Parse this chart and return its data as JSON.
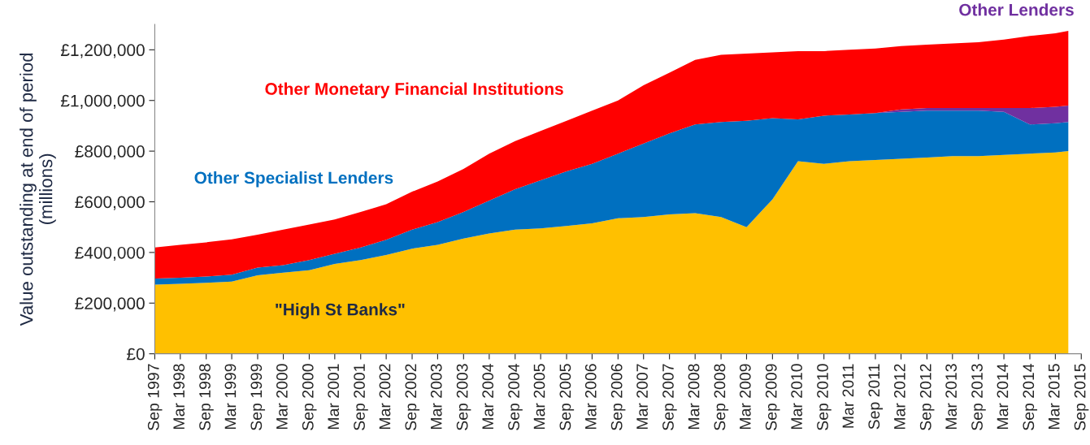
{
  "chart_data": {
    "type": "area",
    "stacked": true,
    "ylabel": "Value outstanding at end of period\n(millions)",
    "x": [
      "1997-09",
      "1998-03",
      "1998-09",
      "1999-03",
      "1999-09",
      "2000-03",
      "2000-09",
      "2001-03",
      "2001-09",
      "2002-03",
      "2002-09",
      "2003-03",
      "2003-09",
      "2004-03",
      "2004-09",
      "2005-03",
      "2005-09",
      "2006-03",
      "2006-09",
      "2007-03",
      "2007-09",
      "2008-03",
      "2008-09",
      "2009-03",
      "2009-09",
      "2010-03",
      "2010-09",
      "2011-03",
      "2011-09",
      "2012-03",
      "2012-09",
      "2013-03",
      "2013-09",
      "2014-03",
      "2014-09",
      "2015-03",
      "2015-06"
    ],
    "series": [
      {
        "name": "\"High St Banks\"",
        "color": "#ffc000",
        "values": [
          273000,
          276000,
          280000,
          285000,
          310000,
          320000,
          330000,
          355000,
          370000,
          390000,
          415000,
          430000,
          455000,
          475000,
          490000,
          495000,
          505000,
          515000,
          535000,
          540000,
          550000,
          555000,
          540000,
          500000,
          610000,
          760000,
          750000,
          760000,
          765000,
          770000,
          775000,
          780000,
          780000,
          785000,
          790000,
          795000,
          800000
        ]
      },
      {
        "name": "Other Specialist Lenders",
        "color": "#0070c0",
        "values": [
          24000,
          24000,
          25000,
          27000,
          30000,
          30000,
          40000,
          40000,
          50000,
          60000,
          75000,
          90000,
          105000,
          130000,
          160000,
          190000,
          215000,
          235000,
          255000,
          290000,
          320000,
          350000,
          375000,
          420000,
          320000,
          165000,
          190000,
          185000,
          185000,
          185000,
          185000,
          180000,
          180000,
          170000,
          115000,
          115000,
          115000
        ]
      },
      {
        "name": "Other Lenders",
        "color": "#7030a0",
        "values": [
          0,
          0,
          0,
          0,
          0,
          0,
          0,
          0,
          0,
          0,
          0,
          0,
          0,
          0,
          0,
          0,
          0,
          0,
          0,
          0,
          0,
          0,
          0,
          0,
          0,
          0,
          0,
          0,
          0,
          10000,
          10000,
          10000,
          10000,
          15000,
          65000,
          65000,
          65000
        ]
      },
      {
        "name": "Other Monetary Financial Institutions",
        "color": "#ff0000",
        "values": [
          123000,
          130000,
          135000,
          140000,
          130000,
          140000,
          140000,
          135000,
          140000,
          140000,
          150000,
          160000,
          170000,
          185000,
          190000,
          195000,
          200000,
          210000,
          210000,
          230000,
          240000,
          255000,
          265000,
          265000,
          260000,
          270000,
          255000,
          255000,
          255000,
          250000,
          250000,
          255000,
          260000,
          270000,
          285000,
          290000,
          295000
        ]
      }
    ],
    "ylim": [
      0,
      1300000
    ],
    "yticks": [
      {
        "value": 0,
        "label": "£0"
      },
      {
        "value": 200000,
        "label": "£200,000"
      },
      {
        "value": 400000,
        "label": "£400,000"
      },
      {
        "value": 600000,
        "label": "£600,000"
      },
      {
        "value": 800000,
        "label": "£800,000"
      },
      {
        "value": 1000000,
        "label": "£1,000,000"
      },
      {
        "value": 1200000,
        "label": "£1,200,000"
      }
    ],
    "xlim": [
      "1997-09",
      "2015-09"
    ],
    "xticks": [
      {
        "value": "1997-09",
        "label": "Sep 1997"
      },
      {
        "value": "1998-03",
        "label": "Mar 1998"
      },
      {
        "value": "1998-09",
        "label": "Sep 1998"
      },
      {
        "value": "1999-03",
        "label": "Mar 1999"
      },
      {
        "value": "1999-09",
        "label": "Sep 1999"
      },
      {
        "value": "2000-03",
        "label": "Mar 2000"
      },
      {
        "value": "2000-09",
        "label": "Sep 2000"
      },
      {
        "value": "2001-03",
        "label": "Mar 2001"
      },
      {
        "value": "2001-09",
        "label": "Sep 2001"
      },
      {
        "value": "2002-03",
        "label": "Mar 2002"
      },
      {
        "value": "2002-09",
        "label": "Sep 2002"
      },
      {
        "value": "2003-03",
        "label": "Mar 2003"
      },
      {
        "value": "2003-09",
        "label": "Sep 2003"
      },
      {
        "value": "2004-03",
        "label": "Mar 2004"
      },
      {
        "value": "2004-09",
        "label": "Sep 2004"
      },
      {
        "value": "2005-03",
        "label": "Mar 2005"
      },
      {
        "value": "2005-09",
        "label": "Sep 2005"
      },
      {
        "value": "2006-03",
        "label": "Mar 2006"
      },
      {
        "value": "2006-09",
        "label": "Sep 2006"
      },
      {
        "value": "2007-03",
        "label": "Mar 2007"
      },
      {
        "value": "2007-09",
        "label": "Sep 2007"
      },
      {
        "value": "2008-03",
        "label": "Mar 2008"
      },
      {
        "value": "2008-09",
        "label": "Sep 2008"
      },
      {
        "value": "2009-03",
        "label": "Mar 2009"
      },
      {
        "value": "2009-09",
        "label": "Sep 2009"
      },
      {
        "value": "2010-03",
        "label": "Mar 2010"
      },
      {
        "value": "2010-09",
        "label": "Sep 2010"
      },
      {
        "value": "2011-03",
        "label": "Mar 2011"
      },
      {
        "value": "2011-09",
        "label": "Sep 2011"
      },
      {
        "value": "2012-03",
        "label": "Mar 2012"
      },
      {
        "value": "2012-09",
        "label": "Sep 2012"
      },
      {
        "value": "2013-03",
        "label": "Mar 2013"
      },
      {
        "value": "2013-09",
        "label": "Sep 2013"
      },
      {
        "value": "2014-03",
        "label": "Mar 2014"
      },
      {
        "value": "2014-09",
        "label": "Sep 2014"
      },
      {
        "value": "2015-03",
        "label": "Mar 2015"
      },
      {
        "value": "2015-09",
        "label": "Sep 2015"
      }
    ],
    "grid": false,
    "legend": false
  }
}
